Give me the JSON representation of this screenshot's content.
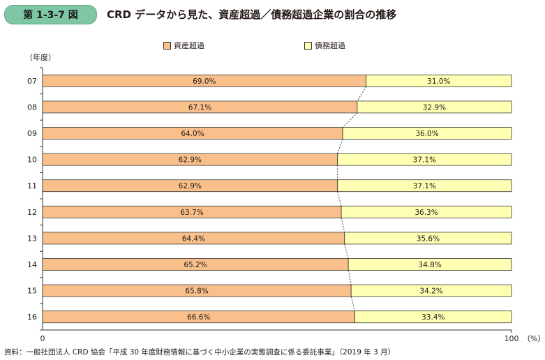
{
  "header": {
    "badge": "第 1-3-7 図",
    "title": "CRD データから見た、資産超過／債務超過企業の割合の推移"
  },
  "legend": [
    {
      "label": "資産超過",
      "color": "#f9c08c"
    },
    {
      "label": "債務超過",
      "color": "#ffffb3"
    }
  ],
  "source": "資料：一般社団法人 CRD 協会「平成 30 年度財務情報に基づく中小企業の実態調査に係る委託事業」（2019 年 3 月）",
  "chart_data": {
    "type": "bar",
    "orientation": "horizontal",
    "stacked": true,
    "ylabel": "（年度）",
    "xunit": "（%）",
    "xlim": [
      0,
      100
    ],
    "xticks": [
      "0",
      "100"
    ],
    "categories": [
      "07",
      "08",
      "09",
      "10",
      "11",
      "12",
      "13",
      "14",
      "15",
      "16"
    ],
    "series": [
      {
        "name": "資産超過",
        "color": "#f9c08c",
        "values": [
          69.0,
          67.1,
          64.0,
          62.9,
          62.9,
          63.7,
          64.4,
          65.2,
          65.8,
          66.6
        ],
        "labels": [
          "69.0%",
          "67.1%",
          "64.0%",
          "62.9%",
          "62.9%",
          "63.7%",
          "64.4%",
          "65.2%",
          "65.8%",
          "66.6%"
        ]
      },
      {
        "name": "債務超過",
        "color": "#ffffb3",
        "values": [
          31.0,
          32.9,
          36.0,
          37.1,
          37.1,
          36.3,
          35.6,
          34.8,
          34.2,
          33.4
        ],
        "labels": [
          "31.0%",
          "32.9%",
          "36.0%",
          "37.1%",
          "37.1%",
          "36.3%",
          "35.6%",
          "34.8%",
          "34.2%",
          "33.4%"
        ]
      }
    ],
    "connector_lines": "dashed",
    "grid": false
  }
}
